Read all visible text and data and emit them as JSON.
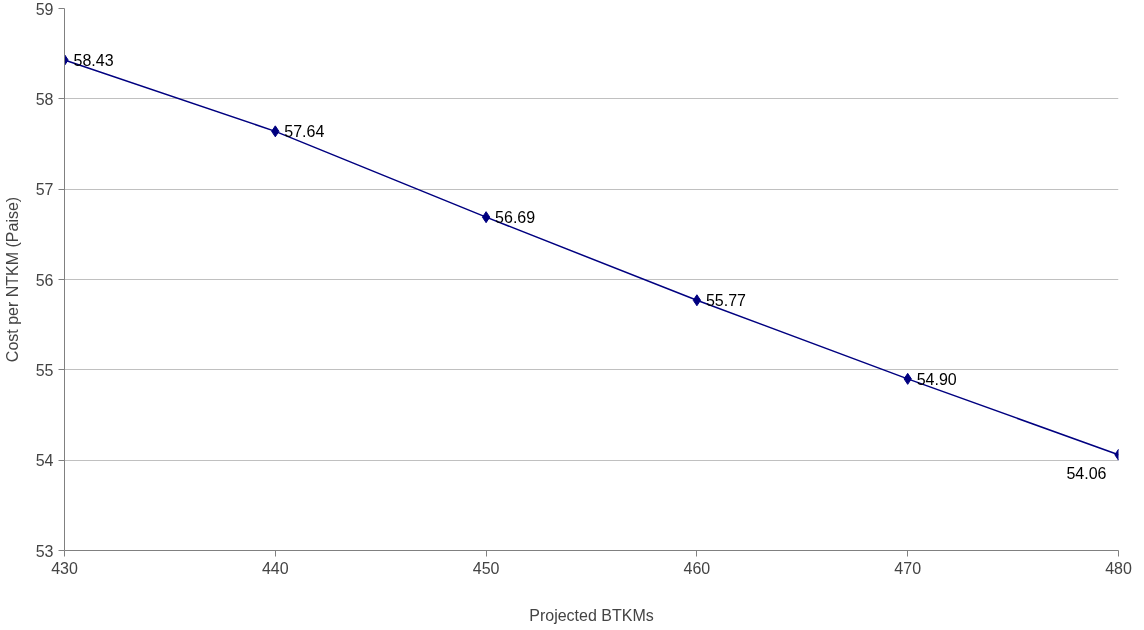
{
  "chart_data": {
    "type": "line",
    "xlabel": "Projected BTKMs",
    "ylabel": "Cost per NTKM (Paise)",
    "x": [
      430,
      440,
      450,
      460,
      470,
      480
    ],
    "series": [
      {
        "color": "#000080",
        "values": [
          58.43,
          57.64,
          56.69,
          55.77,
          54.9,
          54.06
        ],
        "value_labels": [
          "58.43",
          "57.64",
          "56.69",
          "55.77",
          "54.90",
          "54.06"
        ]
      }
    ],
    "xlim": [
      430,
      480
    ],
    "xticks": [
      430,
      440,
      450,
      460,
      470,
      480
    ],
    "ylim": [
      53,
      59
    ],
    "yticks": [
      53,
      54,
      55,
      56,
      57,
      58,
      59
    ],
    "grid": "y",
    "marker": "diamond",
    "line_style": "solid"
  }
}
